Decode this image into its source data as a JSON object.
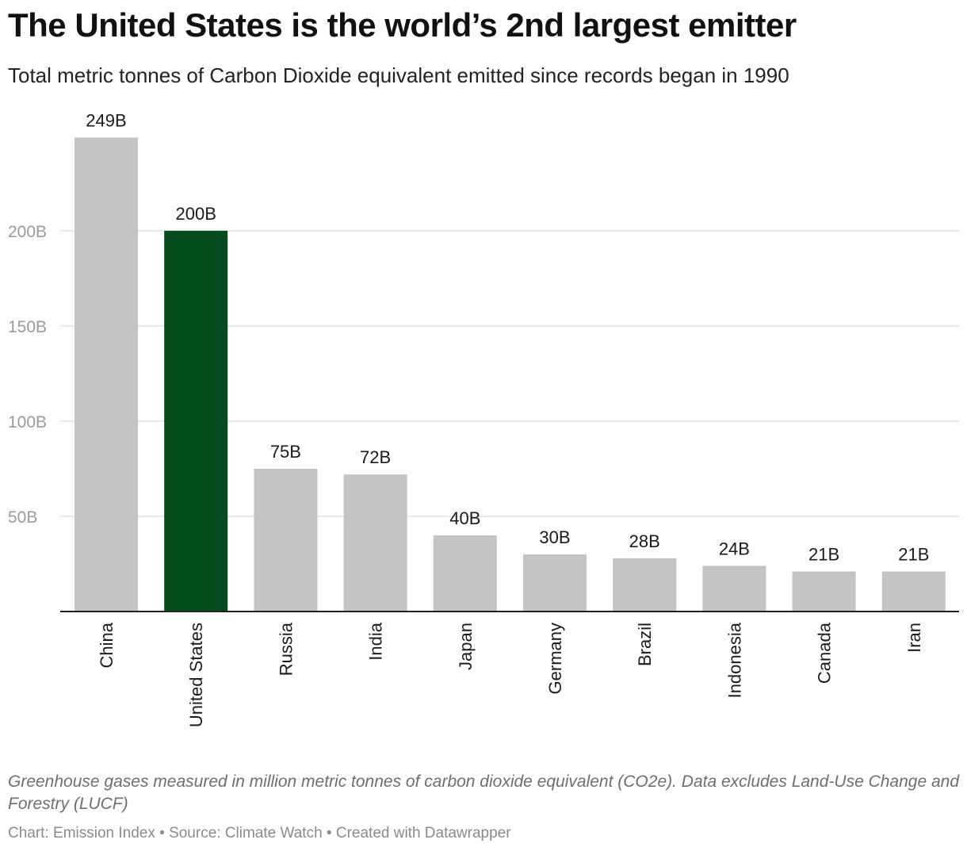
{
  "chart_data": {
    "type": "bar",
    "title": "The United States is the world’s 2nd largest emitter",
    "subtitle": "Total metric tonnes of Carbon Dioxide equivalent emitted since records began in 1990",
    "categories": [
      "China",
      "United States",
      "Russia",
      "India",
      "Japan",
      "Germany",
      "Brazil",
      "Indonesia",
      "Canada",
      "Iran"
    ],
    "values": [
      249,
      200,
      75,
      72,
      40,
      30,
      28,
      24,
      21,
      21
    ],
    "value_labels": [
      "249B",
      "200B",
      "75B",
      "72B",
      "40B",
      "30B",
      "28B",
      "24B",
      "21B",
      "21B"
    ],
    "highlight_category": "United States",
    "ylim": [
      0,
      250
    ],
    "yticks": [
      50,
      100,
      150,
      200
    ],
    "ytick_labels": [
      "50B",
      "100B",
      "150B",
      "200B"
    ],
    "grid": true,
    "xlabel": "",
    "ylabel": "",
    "colors": {
      "bar": "#c4c4c4",
      "highlight": "#034d1e",
      "grid": "#e2e2e2",
      "axis": "#222222"
    }
  },
  "notes": "Greenhouse gases measured in million metric tonnes of carbon dioxide equivalent (CO2e). Data excludes Land-Use Change and Forestry (LUCF)",
  "footer": "Chart: Emission Index • Source: Climate Watch • Created with Datawrapper"
}
